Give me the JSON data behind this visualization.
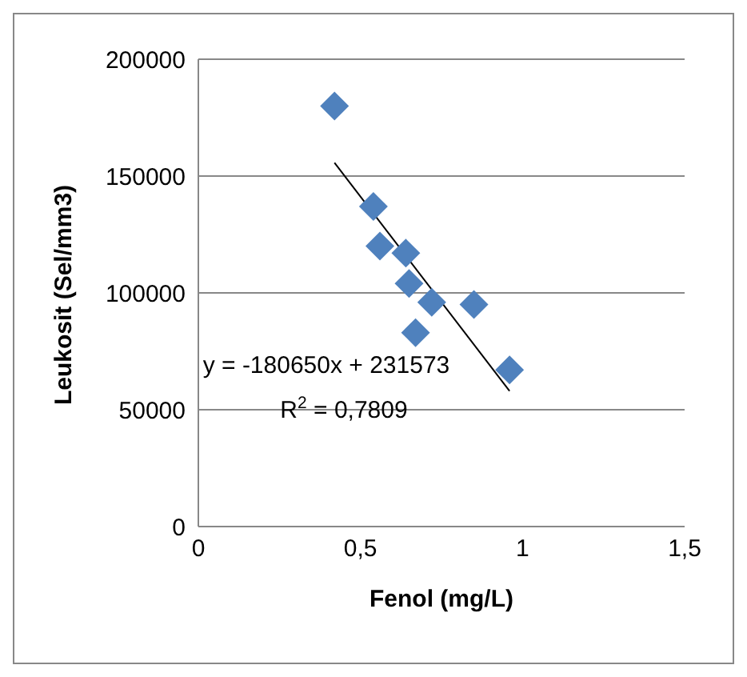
{
  "chart_data": {
    "type": "scatter",
    "xlabel": "Fenol (mg/L)",
    "ylabel": "Leukosit (Sel/mm3)",
    "xlim": [
      0,
      1.5
    ],
    "xticks": [
      0,
      {
        "value": 0.5,
        "label": "0,5"
      },
      1,
      {
        "value": 1.5,
        "label": "1,5"
      }
    ],
    "ylim": [
      0,
      200000
    ],
    "yticks": [
      0,
      50000,
      100000,
      150000,
      200000
    ],
    "grid": "y",
    "series": [
      {
        "color": "#4f81bd",
        "marker": "diamond",
        "x": [
          0.42,
          0.54,
          0.56,
          0.64,
          0.65,
          0.67,
          0.72,
          0.85,
          0.96
        ],
        "values": [
          180000,
          137000,
          120000,
          117000,
          104000,
          83000,
          96000,
          95000,
          67000
        ]
      },
      {
        "type": "line",
        "color": "#000000",
        "x": [
          0.42,
          0.96
        ],
        "values": [
          155700,
          58000
        ]
      }
    ],
    "annotations": [
      "y = -180650x + 231573",
      "R$^{2}$ = 0,7809"
    ]
  }
}
